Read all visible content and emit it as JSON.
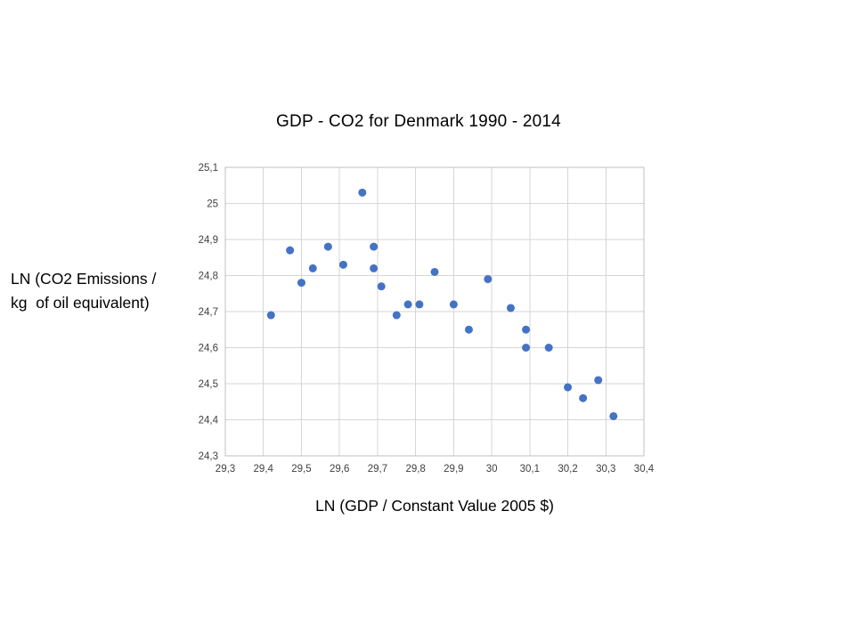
{
  "chart": {
    "title": "GDP - CO2 for Denmark 1990 - 2014",
    "xlabel": "LN (GDP / Constant Value 2005 $)",
    "ylabel_line1": "LN (CO2 Emissions /",
    "ylabel_line2": "kg  of oil equivalent)"
  },
  "chart_data": {
    "type": "scatter",
    "title": "GDP - CO2 for Denmark 1990 - 2014",
    "xlabel": "LN (GDP / Constant Value 2005 $)",
    "ylabel": "LN (CO2 Emissions / kg  of oil equivalent)",
    "xlim": [
      29.3,
      30.4
    ],
    "ylim": [
      24.3,
      25.1
    ],
    "grid": true,
    "legend": "none",
    "decimal_separator": ",",
    "x_tick_values": [
      29.3,
      29.4,
      29.5,
      29.6,
      29.7,
      29.8,
      29.9,
      30.0,
      30.1,
      30.2,
      30.3,
      30.4
    ],
    "x_tick_labels": [
      "29,3",
      "29,4",
      "29,5",
      "29,6",
      "29,7",
      "29,8",
      "29,9",
      "30",
      "30,1",
      "30,2",
      "30,3",
      "30,4"
    ],
    "y_tick_values": [
      25.1,
      25.0,
      24.9,
      24.8,
      24.7,
      24.6,
      24.5,
      24.4,
      24.3
    ],
    "y_tick_labels": [
      "25,1",
      "25",
      "24,9",
      "24,8",
      "24,7",
      "24,6",
      "24,5",
      "24,4",
      "24,3"
    ],
    "marker_color": "#4472C4",
    "grid_color": "#D6D6D6",
    "border_color": "#BFBFBF",
    "tick_text_color": "#404040",
    "points": [
      {
        "x": 29.42,
        "y": 24.69
      },
      {
        "x": 29.47,
        "y": 24.87
      },
      {
        "x": 29.5,
        "y": 24.78
      },
      {
        "x": 29.53,
        "y": 24.82
      },
      {
        "x": 29.57,
        "y": 24.88
      },
      {
        "x": 29.61,
        "y": 24.83
      },
      {
        "x": 29.66,
        "y": 25.03
      },
      {
        "x": 29.69,
        "y": 24.88
      },
      {
        "x": 29.69,
        "y": 24.82
      },
      {
        "x": 29.71,
        "y": 24.77
      },
      {
        "x": 29.75,
        "y": 24.69
      },
      {
        "x": 29.78,
        "y": 24.72
      },
      {
        "x": 29.81,
        "y": 24.72
      },
      {
        "x": 29.85,
        "y": 24.81
      },
      {
        "x": 29.9,
        "y": 24.72
      },
      {
        "x": 29.94,
        "y": 24.65
      },
      {
        "x": 29.99,
        "y": 24.79
      },
      {
        "x": 30.05,
        "y": 24.71
      },
      {
        "x": 30.09,
        "y": 24.65
      },
      {
        "x": 30.09,
        "y": 24.6
      },
      {
        "x": 30.15,
        "y": 24.6
      },
      {
        "x": 30.2,
        "y": 24.49
      },
      {
        "x": 30.24,
        "y": 24.46
      },
      {
        "x": 30.28,
        "y": 24.51
      },
      {
        "x": 30.32,
        "y": 24.41
      }
    ]
  }
}
